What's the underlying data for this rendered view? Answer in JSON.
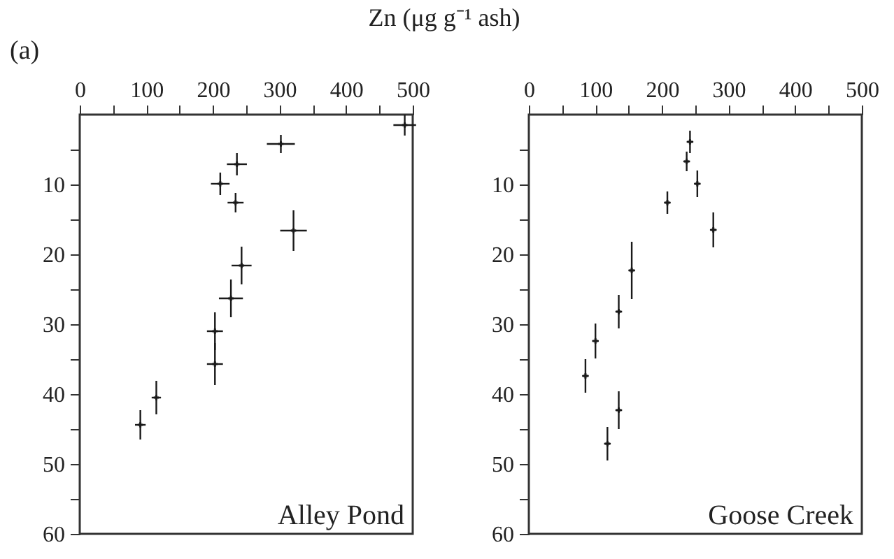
{
  "chart_data": [
    {
      "type": "scatter",
      "xlabel": "Zn (μg g⁻¹ ash)",
      "annotations": [
        "(a)",
        "Alley Pond"
      ],
      "marker": "cross",
      "xlim": [
        0,
        500
      ],
      "xticks": [
        0,
        {
          "value": 50,
          "label": null
        },
        100,
        {
          "value": 150,
          "label": null
        },
        200,
        {
          "value": 250,
          "label": null
        },
        300,
        {
          "value": 350,
          "label": null
        },
        400,
        {
          "value": 450,
          "label": null
        },
        500
      ],
      "ylim": [
        60,
        0
      ],
      "yticks": [
        {
          "value": 5,
          "label": null
        },
        10,
        {
          "value": 15,
          "label": null
        },
        20,
        {
          "value": 25,
          "label": null
        },
        30,
        {
          "value": 35,
          "label": null
        },
        40,
        {
          "value": 45,
          "label": null
        },
        50,
        {
          "value": 55,
          "label": null
        },
        60
      ],
      "series": [
        {
          "color": "#1a1a1a",
          "x": [
            488,
            302,
            236,
            211,
            234,
            321,
            243,
            227,
            203,
            203,
            115,
            91
          ],
          "values": [
            1.5,
            4.2,
            7.1,
            9.9,
            12.6,
            16.6,
            21.6,
            26.3,
            31.0,
            35.7,
            40.5,
            44.4
          ],
          "errors": [
            1.5,
            1.3,
            1.6,
            1.6,
            1.4,
            2.9,
            2.7,
            2.7,
            2.7,
            3.0,
            2.4,
            2.1
          ],
          "xerrors": [
            17,
            21,
            15,
            14,
            12,
            20,
            15,
            18,
            12,
            12,
            7,
            8
          ]
        }
      ]
    },
    {
      "type": "scatter",
      "annotations": [
        "Goose Creek"
      ],
      "marker": "cross",
      "xlim": [
        0,
        500
      ],
      "xticks": [
        0,
        {
          "value": 50,
          "label": null
        },
        100,
        {
          "value": 150,
          "label": null
        },
        200,
        {
          "value": 250,
          "label": null
        },
        300,
        {
          "value": 350,
          "label": null
        },
        400,
        {
          "value": 450,
          "label": null
        },
        500
      ],
      "ylim": [
        60,
        0
      ],
      "yticks": [
        {
          "value": 5,
          "label": null
        },
        10,
        {
          "value": 15,
          "label": null
        },
        20,
        {
          "value": 25,
          "label": null
        },
        30,
        {
          "value": 35,
          "label": null
        },
        40,
        {
          "value": 45,
          "label": null
        },
        50,
        {
          "value": 55,
          "label": null
        },
        60
      ],
      "series": [
        {
          "color": "#1a1a1a",
          "x": [
            242,
            237,
            253,
            208,
            277,
            154.5,
            135,
            100,
            85,
            135,
            118
          ],
          "values": [
            3.9,
            6.7,
            9.9,
            12.6,
            16.5,
            22.3,
            28.2,
            32.4,
            37.4,
            42.3,
            47.1
          ],
          "errors": [
            1.6,
            1.4,
            1.9,
            1.6,
            2.5,
            4.1,
            2.4,
            2.5,
            2.4,
            2.7,
            2.4
          ],
          "xerrors": [
            5,
            5,
            5,
            5,
            5,
            5,
            5,
            5,
            5,
            5,
            5
          ]
        }
      ]
    }
  ]
}
